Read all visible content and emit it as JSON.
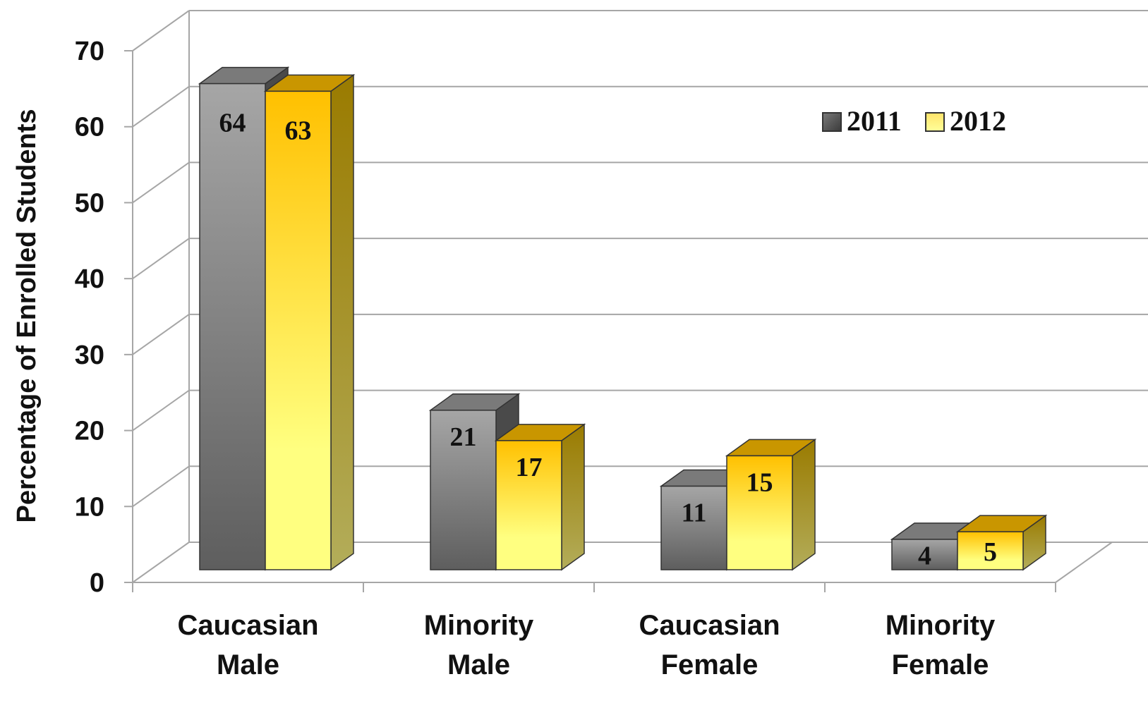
{
  "chart_data": {
    "type": "bar",
    "title": "",
    "xlabel": "",
    "ylabel": "Percentage of Enrolled Students",
    "ylim": [
      0,
      70
    ],
    "yticks": [
      "0",
      "10",
      "20",
      "30",
      "40",
      "50",
      "60",
      "70"
    ],
    "categories": [
      [
        "Caucasian",
        "Male"
      ],
      [
        "Minority",
        "Male"
      ],
      [
        "Caucasian",
        "Female"
      ],
      [
        "Minority",
        "Female"
      ]
    ],
    "series": [
      {
        "name": "2011",
        "values": [
          64,
          21,
          11,
          4
        ]
      },
      {
        "name": "2012",
        "values": [
          63,
          17,
          15,
          5
        ]
      }
    ],
    "data_labels": [
      [
        "64",
        "21",
        "11",
        "4"
      ],
      [
        "63",
        "17",
        "15",
        "5"
      ]
    ],
    "legend_position": "top-right",
    "grid": true,
    "style": "3d-clustered-column",
    "colors": {
      "s2011_front_top": "#a6a6a6",
      "s2011_front_bottom": "#5e5e5e",
      "s2011_top": "#7a7a7a",
      "s2011_side": "#4a4a4a",
      "s2012_front_top": "#ffc000",
      "s2012_front_bottom": "#ffff80",
      "s2012_top": "#c99600",
      "s2012_side": "#a79e40",
      "grid": "#a6a6a6",
      "axis": "#a6a6a6"
    }
  }
}
